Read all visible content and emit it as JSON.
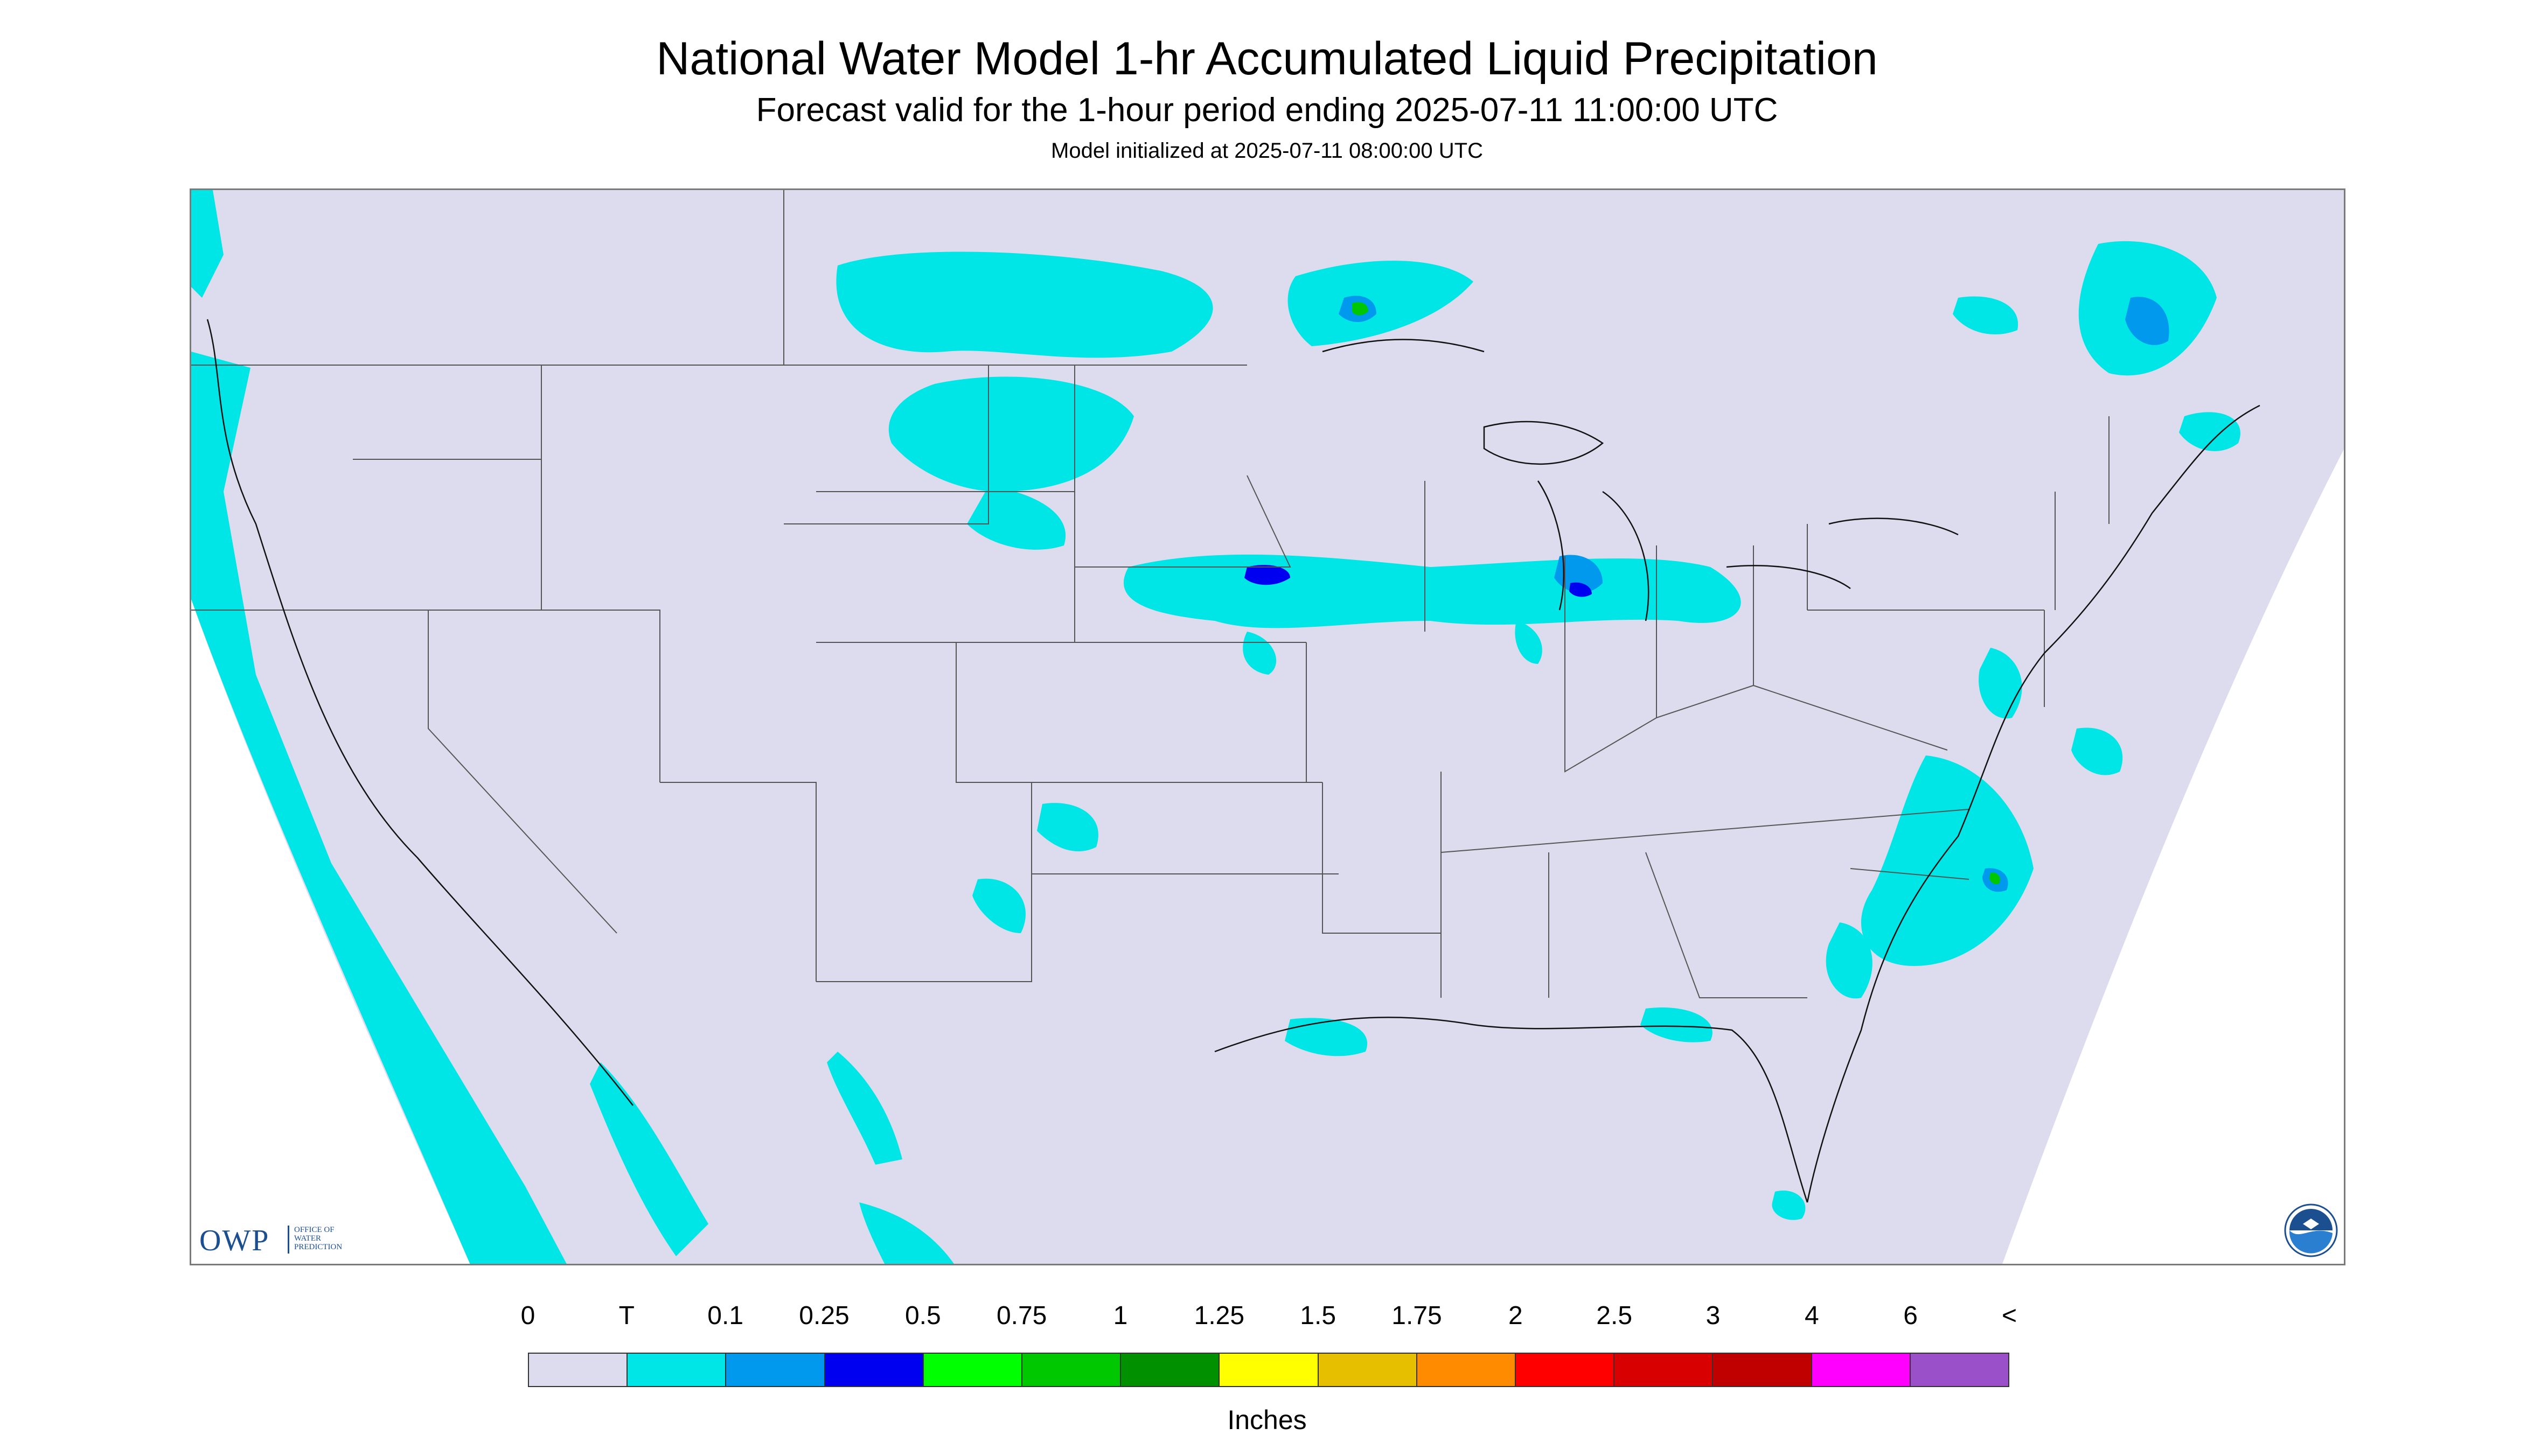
{
  "header": {
    "title": "National Water Model 1-hr Accumulated Liquid Precipitation",
    "subtitle": "Forecast valid for the 1-hour period ending 2025-07-11 11:00:00 UTC",
    "init_line": "Model initialized at 2025-07-11 08:00:00 UTC"
  },
  "map": {
    "region": "Contiguous United States",
    "background_color": "#dcdcee",
    "outside_domain_color": "#ffffff",
    "boundary_color": "#555555",
    "coast_color": "#000000"
  },
  "logos": {
    "owp": {
      "text": "OWP",
      "lines": [
        "OFFICE OF",
        "WATER",
        "PREDICTION"
      ]
    },
    "noaa": {
      "icon": "noaa-logo-icon"
    }
  },
  "legend": {
    "ticks": [
      "0",
      "T",
      "0.1",
      "0.25",
      "0.5",
      "0.75",
      "1",
      "1.25",
      "1.5",
      "1.75",
      "2",
      "2.5",
      "3",
      "4",
      "6",
      "<"
    ],
    "colors": [
      "#dcdcee",
      "#00e5e5",
      "#0099ee",
      "#0000f0",
      "#00ff00",
      "#00c800",
      "#009000",
      "#ffff00",
      "#e6c000",
      "#ff8c00",
      "#ff0000",
      "#d80000",
      "#c00000",
      "#ff00ff",
      "#9a50c8"
    ],
    "units": "Inches"
  }
}
